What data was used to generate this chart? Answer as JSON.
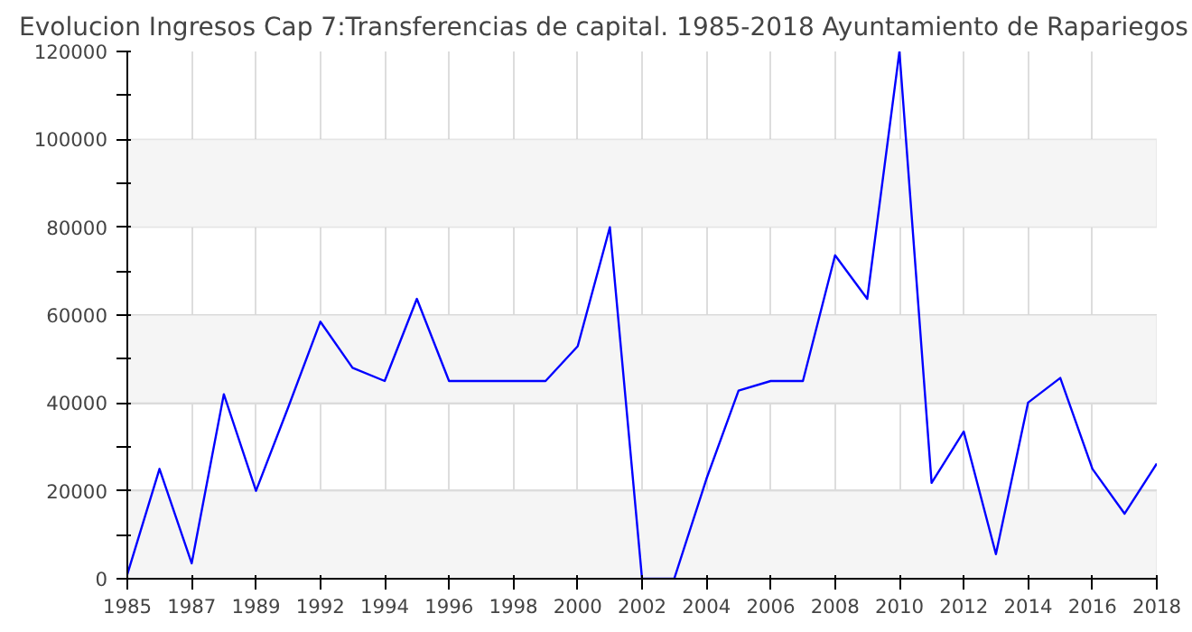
{
  "chart_data": {
    "type": "line",
    "title": "Evolucion Ingresos Cap 7:Transferencias de capital. 1985-2018 Ayuntamiento de Rapariegos",
    "categories": [
      "1985",
      null,
      "1987",
      null,
      "1989",
      null,
      "1992",
      null,
      "1994",
      null,
      "1996",
      null,
      "1998",
      null,
      "2000",
      null,
      "2002",
      null,
      "2004",
      null,
      "2006",
      null,
      "2008",
      null,
      "2010",
      null,
      "2012",
      null,
      "2014",
      null,
      "2016",
      null,
      "2018"
    ],
    "series": [
      {
        "color": "#0000ff",
        "values": [
          1000,
          25000,
          3500,
          42000,
          20000,
          39000,
          58500,
          48000,
          45000,
          63700,
          45000,
          45000,
          45000,
          45000,
          52900,
          80000,
          0,
          0,
          22700,
          42800,
          45000,
          45000,
          73600,
          63700,
          120000,
          21800,
          33500,
          5600,
          40100,
          45700,
          25000,
          14800,
          26200
        ]
      }
    ],
    "ylim": [
      0,
      120000
    ],
    "yticks": [
      0,
      {
        "value": 10000,
        "label": null
      },
      20000,
      {
        "value": 30000,
        "label": null
      },
      40000,
      {
        "value": 50000,
        "label": null
      },
      60000,
      {
        "value": 70000,
        "label": null
      },
      80000,
      {
        "value": 90000,
        "label": null
      },
      100000,
      {
        "value": 110000,
        "label": null
      },
      120000
    ],
    "bands": [
      {
        "axis": "y",
        "from": 0,
        "to": 20000,
        "color": "#f5f5f5"
      },
      {
        "axis": "y",
        "from": 40000,
        "to": 60000,
        "color": "#f5f5f5"
      },
      {
        "axis": "y",
        "from": 80000,
        "to": 100000,
        "color": "#f5f5f5"
      }
    ],
    "grid": true,
    "marker": "none",
    "line_style": "solid"
  }
}
